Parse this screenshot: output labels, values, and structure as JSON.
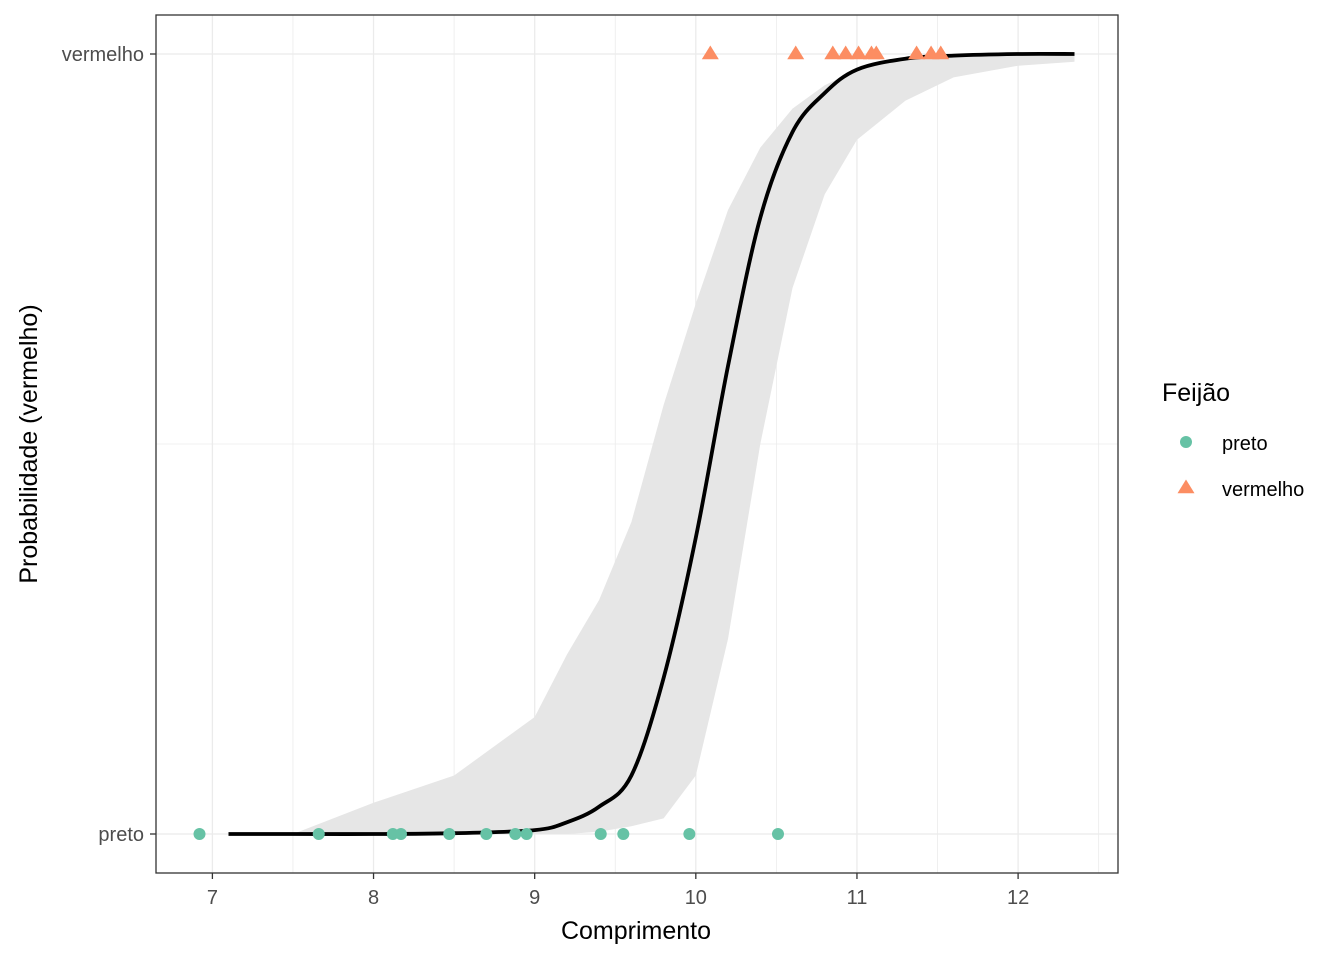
{
  "chart_data": {
    "type": "scatter",
    "xlabel": "Comprimento",
    "ylabel": "Probabilidade (vermelho)",
    "xlim": [
      6.65,
      12.62
    ],
    "ylim": [
      -0.05,
      1.05
    ],
    "x_ticks": [
      7,
      8,
      9,
      10,
      11,
      12
    ],
    "y_tick_labels": [
      {
        "value": 0,
        "label": "preto"
      },
      {
        "value": 1,
        "label": "vermelho"
      }
    ],
    "grid": true,
    "legend": {
      "title": "Feijão",
      "position": "right",
      "entries": [
        {
          "label": "preto",
          "shape": "circle",
          "color": "#66C2A5"
        },
        {
          "label": "vermelho",
          "shape": "triangle",
          "color": "#FC8D62"
        }
      ]
    },
    "series": [
      {
        "name": "preto",
        "shape": "circle",
        "color": "#66C2A5",
        "y": 0,
        "x": [
          6.92,
          7.66,
          8.12,
          8.17,
          8.47,
          8.7,
          8.88,
          8.95,
          9.41,
          9.55,
          9.96,
          10.51
        ]
      },
      {
        "name": "vermelho",
        "shape": "triangle",
        "color": "#FC8D62",
        "y": 1,
        "x": [
          10.09,
          10.62,
          10.85,
          10.93,
          11.01,
          11.09,
          11.12,
          11.37,
          11.46,
          11.52
        ]
      }
    ],
    "fit": {
      "type": "logistic",
      "color": "#000000",
      "band_color": "#E6E6E6",
      "x": [
        7.1,
        7.5,
        8.0,
        8.5,
        9.0,
        9.2,
        9.4,
        9.6,
        9.8,
        10.0,
        10.2,
        10.4,
        10.6,
        10.8,
        11.0,
        11.3,
        11.6,
        12.0,
        12.35
      ],
      "y": [
        0.0,
        0.0,
        0.0,
        0.001,
        0.005,
        0.015,
        0.035,
        0.075,
        0.2,
        0.38,
        0.6,
        0.79,
        0.9,
        0.95,
        0.98,
        0.994,
        0.998,
        1.0,
        1.0
      ],
      "ymin": [
        0.0,
        0.0,
        0.0,
        0.0,
        0.0,
        0.0,
        0.003,
        0.01,
        0.02,
        0.075,
        0.25,
        0.5,
        0.7,
        0.82,
        0.89,
        0.94,
        0.97,
        0.985,
        0.99
      ],
      "ymax": [
        0.0,
        0.0,
        0.04,
        0.075,
        0.15,
        0.23,
        0.3,
        0.4,
        0.55,
        0.68,
        0.8,
        0.88,
        0.93,
        0.96,
        0.98,
        0.995,
        1.0,
        1.0,
        1.0
      ]
    }
  }
}
